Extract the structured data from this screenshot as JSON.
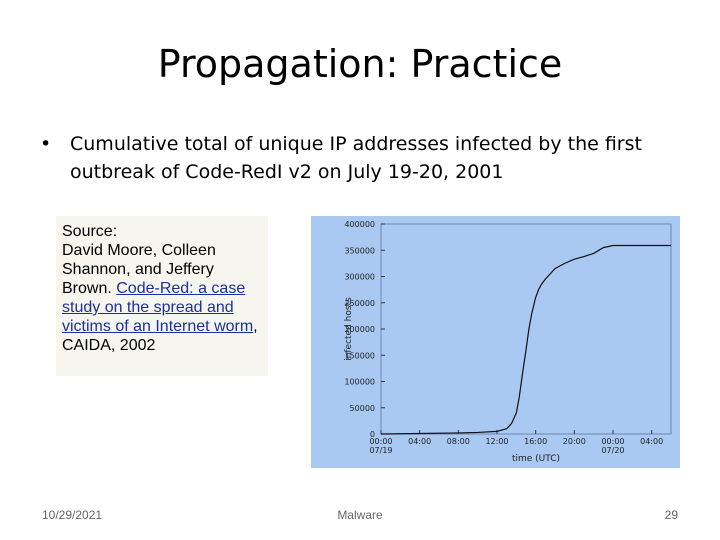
{
  "slide": {
    "title": "Propagation: Practice",
    "bullet": "Cumulative total of unique IP addresses infected by the first outbreak of Code-RedI v2 on July 19-20, 2001",
    "source": {
      "label": "Source:",
      "authors": "David Moore, Colleen Shannon, and Jeffery Brown.",
      "link_text": "Code-Red: a case study on the spread and victims of an Internet worm",
      "tail": ", CAIDA, 2002"
    },
    "footer": {
      "date": "10/29/2021",
      "center": "Malware",
      "page": "29"
    }
  },
  "colors": {
    "chart_background": "#a9c9f2",
    "link": "#1d2fa0",
    "source_background": "#f6f6ee"
  },
  "chart_data": {
    "type": "line",
    "title": "",
    "xlabel": "time (UTC)",
    "ylabel": "infected hosts",
    "x_tick_labels": [
      "00:00\n07/19",
      "04:00",
      "08:00",
      "12:00",
      "16:00",
      "20:00",
      "00:00\n07/20",
      "04:00"
    ],
    "x_ticks_hours": [
      0,
      4,
      8,
      12,
      16,
      20,
      24,
      28
    ],
    "y_ticks": [
      0,
      50000,
      100000,
      150000,
      200000,
      250000,
      300000,
      350000,
      400000
    ],
    "xlim_hours": [
      0,
      30
    ],
    "ylim": [
      0,
      400000
    ],
    "grid": false,
    "series": [
      {
        "x_hours": [
          0,
          4,
          8,
          10,
          12,
          13,
          13.5,
          14,
          14.3,
          14.6,
          15,
          15.3,
          15.6,
          16,
          16.3,
          16.6,
          17,
          17.5,
          18,
          19,
          20,
          21,
          22,
          23,
          24,
          25,
          26,
          28,
          30
        ],
        "values": [
          0,
          1000,
          2000,
          3000,
          5000,
          10000,
          20000,
          40000,
          70000,
          110000,
          160000,
          200000,
          230000,
          260000,
          275000,
          285000,
          295000,
          305000,
          315000,
          325000,
          333000,
          338000,
          344000,
          355000,
          359000,
          359000,
          359000,
          359000,
          359000
        ]
      }
    ]
  }
}
